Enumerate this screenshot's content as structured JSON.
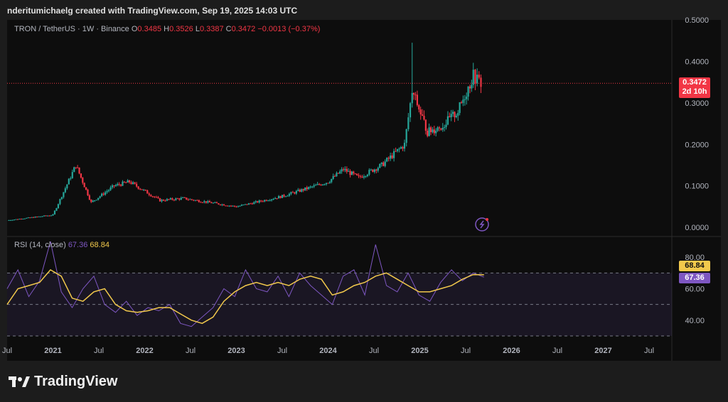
{
  "header": {
    "credit": "nderitumichaelg created with TradingView.com, Sep 19, 2025 14:03 UTC"
  },
  "legend": {
    "symbol": "TRON / TetherUS · 1W · Binance",
    "o_label": "O",
    "o": "0.3485",
    "h_label": "H",
    "h": "0.3526",
    "l_label": "L",
    "l": "0.3387",
    "c_label": "C",
    "c": "0.3472",
    "change": "−0.0013 (−0.37%)"
  },
  "price_tag": {
    "value": "0.3472",
    "countdown": "2d 10h"
  },
  "rsi_legend": {
    "label": "RSI (14, close)",
    "rsi": "67.36",
    "ma": "68.84"
  },
  "rsi_tags": {
    "ma": "68.84",
    "rsi": "67.36"
  },
  "footer": {
    "brand": "TradingView"
  },
  "colors": {
    "up": "#26a69a",
    "down": "#f23645",
    "rsi": "#7e57c2",
    "rsi_ma": "#f2c94c"
  },
  "chart_data": [
    {
      "type": "candlestick",
      "title": "TRON / TetherUS · 1W · Binance",
      "ylim": [
        -0.01,
        0.5
      ],
      "y_ticks": [
        "0.5000",
        "0.4000",
        "0.3000",
        "0.2000",
        "0.1000",
        "0.0000"
      ],
      "x_ticks": [
        "Jul",
        "2021",
        "Jul",
        "2022",
        "Jul",
        "2023",
        "Jul",
        "2024",
        "Jul",
        "2025",
        "Jul",
        "2026",
        "Jul",
        "2027",
        "Jul"
      ],
      "last_price": 0.3472,
      "key_points": [
        {
          "t": "2020-07",
          "close": 0.017
        },
        {
          "t": "2021-01",
          "close": 0.03
        },
        {
          "t": "2021-04",
          "close": 0.15
        },
        {
          "t": "2021-06",
          "close": 0.06
        },
        {
          "t": "2021-09",
          "close": 0.1
        },
        {
          "t": "2021-11",
          "close": 0.11
        },
        {
          "t": "2022-03",
          "close": 0.065
        },
        {
          "t": "2022-06",
          "close": 0.07
        },
        {
          "t": "2023-01",
          "close": 0.05
        },
        {
          "t": "2023-07",
          "close": 0.075
        },
        {
          "t": "2024-01",
          "close": 0.11
        },
        {
          "t": "2024-03",
          "close": 0.14
        },
        {
          "t": "2024-05",
          "close": 0.12
        },
        {
          "t": "2024-08",
          "close": 0.15
        },
        {
          "t": "2024-11",
          "close": 0.2
        },
        {
          "t": "2024-12",
          "close": 0.33,
          "high": 0.445
        },
        {
          "t": "2025-02",
          "close": 0.23
        },
        {
          "t": "2025-04",
          "close": 0.245
        },
        {
          "t": "2025-06",
          "close": 0.28
        },
        {
          "t": "2025-08",
          "close": 0.365
        },
        {
          "t": "2025-09",
          "close": 0.3472
        }
      ]
    },
    {
      "type": "line",
      "title": "RSI (14, close)",
      "ylim": [
        30,
        90
      ],
      "y_ticks": [
        "80.00",
        "60.00",
        "40.00"
      ],
      "levels": [
        70,
        50,
        30
      ],
      "series": [
        {
          "name": "RSI",
          "values": [
            60,
            72,
            55,
            65,
            90,
            58,
            48,
            60,
            68,
            50,
            45,
            52,
            43,
            48,
            46,
            50,
            38,
            36,
            42,
            48,
            60,
            55,
            72,
            60,
            58,
            68,
            55,
            70,
            62,
            56,
            50,
            68,
            72,
            56,
            88,
            62,
            58,
            70,
            56,
            52,
            64,
            72,
            65,
            70,
            67.36
          ]
        },
        {
          "name": "RSI MA",
          "values": [
            50,
            60,
            62,
            64,
            72,
            68,
            54,
            52,
            58,
            60,
            50,
            46,
            45,
            46,
            48,
            48,
            44,
            40,
            38,
            42,
            52,
            58,
            62,
            64,
            62,
            64,
            62,
            66,
            68,
            66,
            56,
            58,
            62,
            64,
            68,
            70,
            66,
            62,
            58,
            58,
            60,
            62,
            66,
            69,
            68.84
          ]
        }
      ]
    }
  ]
}
